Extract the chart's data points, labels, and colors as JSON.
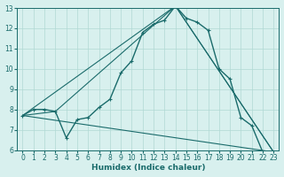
{
  "xlabel": "Humidex (Indice chaleur)",
  "background_color": "#d8f0ee",
  "line_color": "#1a6b6b",
  "grid_color": "#b0d8d4",
  "xlim": [
    -0.5,
    23.5
  ],
  "ylim": [
    6,
    13
  ],
  "xticks": [
    0,
    1,
    2,
    3,
    4,
    5,
    6,
    7,
    8,
    9,
    10,
    11,
    12,
    13,
    14,
    15,
    16,
    17,
    18,
    19,
    20,
    21,
    22,
    23
  ],
  "yticks": [
    6,
    7,
    8,
    9,
    10,
    11,
    12,
    13
  ],
  "tick_fontsize": 5.5,
  "xlabel_fontsize": 6.5,
  "lines": [
    {
      "x": [
        0,
        1,
        2,
        3,
        4,
        5,
        6,
        7,
        8,
        9,
        10,
        11,
        12,
        13,
        14,
        15,
        16,
        17,
        18,
        19,
        20,
        21,
        22,
        23
      ],
      "y": [
        7.7,
        8.0,
        8.0,
        7.9,
        6.6,
        7.5,
        7.6,
        8.1,
        8.5,
        9.8,
        10.4,
        11.8,
        12.2,
        12.4,
        13.1,
        12.5,
        12.3,
        11.9,
        10.0,
        9.5,
        7.6,
        7.2,
        5.9,
        5.9
      ],
      "marker": true,
      "linewidth": 1.0
    },
    {
      "x": [
        0,
        3,
        14,
        23
      ],
      "y": [
        7.7,
        7.9,
        13.1,
        5.9
      ],
      "marker": false,
      "linewidth": 0.8
    },
    {
      "x": [
        0,
        23
      ],
      "y": [
        7.7,
        5.9
      ],
      "marker": false,
      "linewidth": 0.8
    },
    {
      "x": [
        0,
        14,
        23
      ],
      "y": [
        7.7,
        13.1,
        5.9
      ],
      "marker": false,
      "linewidth": 0.8
    }
  ]
}
